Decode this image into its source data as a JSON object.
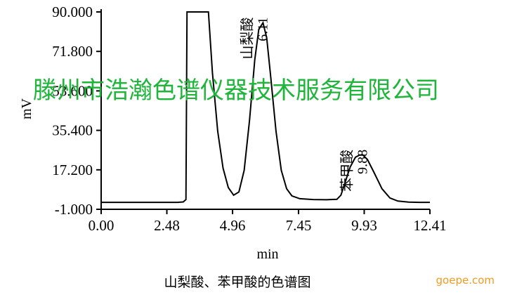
{
  "chart_data": {
    "type": "line",
    "title": "",
    "caption": "山梨酸、苯甲酸的色谱图",
    "xlabel": "min",
    "ylabel": "mV",
    "xlim": [
      0,
      12.41
    ],
    "ylim": [
      -1.0,
      90.0
    ],
    "x_ticks": [
      "0.00",
      "2.48",
      "4.96",
      "7.45",
      "9.93",
      "12.41"
    ],
    "y_ticks": [
      "-1.000",
      "17.200",
      "35.400",
      "53.600",
      "71.800",
      "90.000"
    ],
    "grid": false,
    "legend": "none",
    "series": [
      {
        "points": [
          [
            0.0,
            2.2
          ],
          [
            1.0,
            2.2
          ],
          [
            2.0,
            2.2
          ],
          [
            2.9,
            2.2
          ],
          [
            3.1,
            2.4
          ],
          [
            3.2,
            3.5
          ],
          [
            3.24,
            90.0
          ],
          [
            4.05,
            90.0
          ],
          [
            4.2,
            62.0
          ],
          [
            4.4,
            35.0
          ],
          [
            4.6,
            18.0
          ],
          [
            4.8,
            9.0
          ],
          [
            5.0,
            5.5
          ],
          [
            5.2,
            7.0
          ],
          [
            5.4,
            17.0
          ],
          [
            5.6,
            40.0
          ],
          [
            5.8,
            68.0
          ],
          [
            5.95,
            82.0
          ],
          [
            6.11,
            85.0
          ],
          [
            6.25,
            78.0
          ],
          [
            6.4,
            60.0
          ],
          [
            6.6,
            35.0
          ],
          [
            6.8,
            17.0
          ],
          [
            7.0,
            8.5
          ],
          [
            7.2,
            5.2
          ],
          [
            7.5,
            3.9
          ],
          [
            8.0,
            3.5
          ],
          [
            8.5,
            3.4
          ],
          [
            8.9,
            3.6
          ],
          [
            9.05,
            5.5
          ],
          [
            9.2,
            11.0
          ],
          [
            9.4,
            18.5
          ],
          [
            9.6,
            23.0
          ],
          [
            9.75,
            24.0
          ],
          [
            9.88,
            24.0
          ],
          [
            10.05,
            22.0
          ],
          [
            10.3,
            16.0
          ],
          [
            10.6,
            8.5
          ],
          [
            10.9,
            4.2
          ],
          [
            11.2,
            2.8
          ],
          [
            11.6,
            2.3
          ],
          [
            12.0,
            2.2
          ],
          [
            12.41,
            2.2
          ]
        ]
      }
    ],
    "annotations": [
      {
        "name": "山梨酸",
        "retention": "6.11",
        "x": 6.11,
        "y": 85.0
      },
      {
        "name": "苯甲酸",
        "retention": "9.88",
        "x": 9.88,
        "y": 24.0
      }
    ],
    "line_color": "#000000"
  },
  "watermark": "滕州市浩瀚色谱仪器技术服务有限公司",
  "watermark_color": "#1fb53a",
  "site_mark": "goepe.com",
  "site_mark_color": "#f39a1e"
}
